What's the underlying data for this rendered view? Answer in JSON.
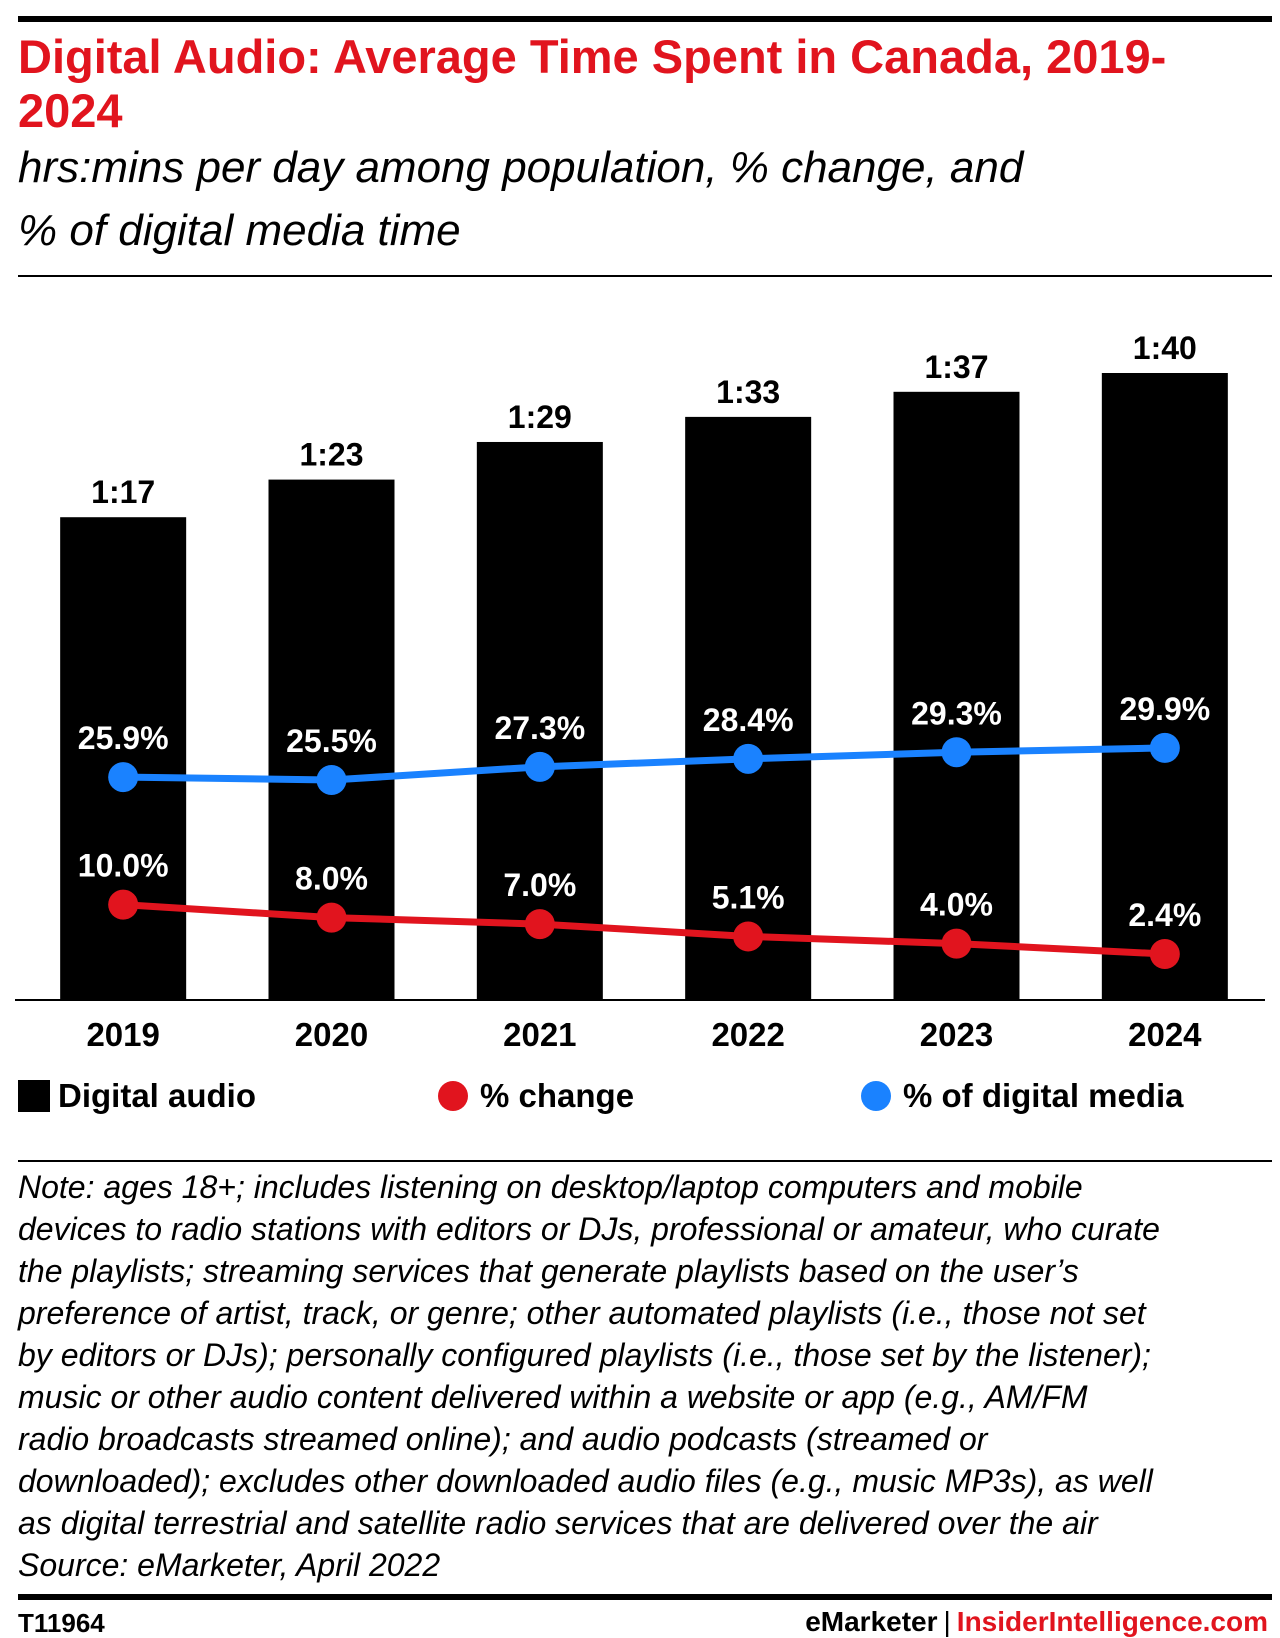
{
  "header": {
    "title": "Digital Audio: Average Time Spent in Canada, 2019-2024",
    "subtitle_line1": "hrs:mins per day among population, % change, and",
    "subtitle_line2": "% of digital media time"
  },
  "legend": {
    "items": [
      {
        "label": "Digital audio",
        "color": "#000000",
        "marker": "square"
      },
      {
        "label": "% change",
        "color": "#e1141e",
        "marker": "circle"
      },
      {
        "label": "% of digital media",
        "color": "#1a82ff",
        "marker": "circle"
      }
    ]
  },
  "chart_data": {
    "type": "bar",
    "title": "Digital Audio: Average Time Spent in Canada, 2019-2024",
    "categories": [
      "2019",
      "2020",
      "2021",
      "2022",
      "2023",
      "2024"
    ],
    "series": [
      {
        "name": "Digital audio",
        "kind": "bar",
        "color": "#000000",
        "minutes": [
          77,
          83,
          89,
          93,
          97,
          100
        ],
        "labels": [
          "1:17",
          "1:23",
          "1:29",
          "1:33",
          "1:37",
          "1:40"
        ]
      },
      {
        "name": "% change",
        "kind": "line",
        "color": "#e1141e",
        "values": [
          10.0,
          8.0,
          7.0,
          5.1,
          4.0,
          2.4
        ],
        "labels": [
          "10.0%",
          "8.0%",
          "7.0%",
          "5.1%",
          "4.0%",
          "2.4%"
        ]
      },
      {
        "name": "% of digital media",
        "kind": "line",
        "color": "#1a82ff",
        "values": [
          25.9,
          25.5,
          27.3,
          28.4,
          29.3,
          29.9
        ],
        "labels": [
          "25.9%",
          "25.5%",
          "27.3%",
          "28.4%",
          "29.3%",
          "29.9%"
        ]
      }
    ],
    "xlabel": "",
    "ylabel": "",
    "grid": false,
    "legend_position": "bottom"
  },
  "notes": {
    "lines": [
      "Note: ages 18+; includes listening on desktop/laptop computers and mobile",
      "devices to radio stations with editors or DJs, professional or amateur, who curate",
      "the playlists; streaming services that generate playlists based on the user’s",
      "preference of artist, track, or genre; other automated playlists (i.e., those not set",
      "by editors or DJs); personally configured playlists (i.e., those set by the listener);",
      "music or other audio content delivered within a website or app (e.g., AM/FM",
      "radio broadcasts streamed online); and audio podcasts (streamed or",
      "downloaded); excludes other downloaded audio files (e.g., music MP3s), as well",
      "as digital terrestrial and satellite radio services that are delivered over the air"
    ],
    "source": "Source: eMarketer, April 2022"
  },
  "footer": {
    "code": "T11964",
    "brand_left": "eMarketer",
    "separator": "|",
    "brand_right": "InsiderIntelligence.com",
    "brand_right_color": "#e1141e"
  }
}
